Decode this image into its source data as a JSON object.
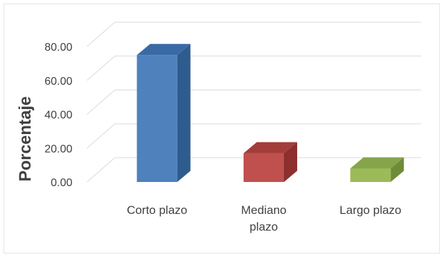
{
  "chart_data": {
    "type": "bar",
    "title": "",
    "xlabel": "",
    "ylabel": "Porcentaje",
    "ylim": [
      0,
      80
    ],
    "ytick_labels": [
      "0.00",
      "20.00",
      "40.00",
      "60.00",
      "80.00"
    ],
    "yticks": [
      0,
      20,
      40,
      60,
      80
    ],
    "categories": [
      {
        "lines": [
          "Corto plazo"
        ]
      },
      {
        "lines": [
          "Mediano",
          "plazo"
        ]
      },
      {
        "lines": [
          "Largo plazo"
        ]
      }
    ],
    "values": [
      75,
      17,
      8
    ],
    "colors": {
      "bars": [
        "#4f81bd",
        "#c0504d",
        "#9bbb59"
      ],
      "bars_side": [
        "#2f5c8e",
        "#8c2f2d",
        "#6e8c37"
      ],
      "bars_top": [
        "#3a6aa6",
        "#a33d3a",
        "#86a54a"
      ],
      "grid": "#d9d9d9",
      "text": "#404040"
    },
    "style": {
      "grid": true,
      "three_d": true,
      "legend": "none"
    }
  }
}
